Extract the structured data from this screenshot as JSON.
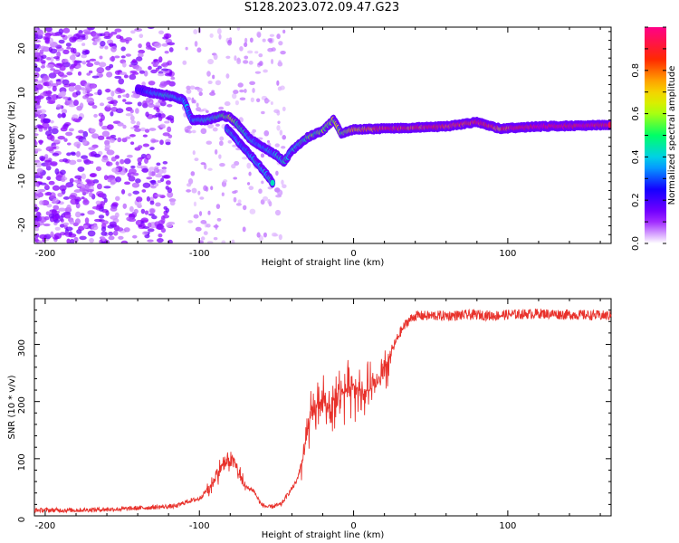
{
  "title": "S128.2023.072.09.47.G23",
  "chart_data": [
    {
      "type": "heatmap",
      "xlabel": "Height of straight line (km)",
      "ylabel": "Frequency (Hz)",
      "xlim": [
        -207,
        167
      ],
      "ylim": [
        -25,
        24
      ],
      "xticks": [
        -200,
        -100,
        0,
        100
      ],
      "yticks": [
        -20,
        -10,
        0,
        10,
        20
      ],
      "colorbar": {
        "label": "Normalized spectral amplitude",
        "range": [
          0,
          1
        ],
        "ticks": [
          "0.0",
          "0.2",
          "0.4",
          "0.6",
          "0.8"
        ],
        "colormap": [
          "#ffffff",
          "#8e00ff",
          "#1400ff",
          "#00c8ff",
          "#00ff66",
          "#c8ff00",
          "#ffc800",
          "#ff2a00",
          "#ff0088"
        ]
      },
      "ridge": [
        {
          "x": -140,
          "y": 10,
          "a": 0.2
        },
        {
          "x": -130,
          "y": 9,
          "a": 0.35
        },
        {
          "x": -120,
          "y": 8.5,
          "a": 0.45
        },
        {
          "x": -110,
          "y": 7.5,
          "a": 0.35
        },
        {
          "x": -105,
          "y": 3,
          "a": 0.35
        },
        {
          "x": -95,
          "y": 3,
          "a": 0.4
        },
        {
          "x": -85,
          "y": 4,
          "a": 0.5
        },
        {
          "x": -80,
          "y": 3.5,
          "a": 0.6
        },
        {
          "x": -75,
          "y": 2,
          "a": 0.5
        },
        {
          "x": -68,
          "y": -1,
          "a": 0.4
        },
        {
          "x": -60,
          "y": -3,
          "a": 0.35
        },
        {
          "x": -50,
          "y": -5,
          "a": 0.4
        },
        {
          "x": -45,
          "y": -6.5,
          "a": 0.45
        },
        {
          "x": -40,
          "y": -4,
          "a": 0.4
        },
        {
          "x": -30,
          "y": -1,
          "a": 0.5
        },
        {
          "x": -20,
          "y": 0.5,
          "a": 0.55
        },
        {
          "x": -13,
          "y": 3,
          "a": 0.6
        },
        {
          "x": -8,
          "y": 0,
          "a": 0.55
        },
        {
          "x": 0,
          "y": 0.8,
          "a": 0.7
        },
        {
          "x": 20,
          "y": 1,
          "a": 0.85
        },
        {
          "x": 60,
          "y": 1.5,
          "a": 0.85
        },
        {
          "x": 80,
          "y": 2.5,
          "a": 0.9
        },
        {
          "x": 95,
          "y": 1,
          "a": 0.8
        },
        {
          "x": 120,
          "y": 1.5,
          "a": 0.95
        },
        {
          "x": 167,
          "y": 1.8,
          "a": 0.95
        }
      ],
      "branch": [
        {
          "x": -82,
          "y": 1,
          "a": 0.4
        },
        {
          "x": -72,
          "y": -3,
          "a": 0.35
        },
        {
          "x": -62,
          "y": -7,
          "a": 0.4
        },
        {
          "x": -55,
          "y": -10,
          "a": 0.45
        },
        {
          "x": -52,
          "y": -11.5,
          "a": 0.4
        }
      ]
    },
    {
      "type": "line",
      "xlabel": "Height of straight line (km)",
      "ylabel": "SNR (10 * v/v)",
      "xlim": [
        -207,
        167
      ],
      "ylim": [
        0,
        380
      ],
      "xticks": [
        -200,
        -100,
        0,
        100
      ],
      "yticks": [
        0,
        100,
        200,
        300
      ],
      "series": [
        {
          "color": "#e8312b",
          "points": [
            [
              -207,
              10
            ],
            [
              -180,
              10
            ],
            [
              -150,
              12
            ],
            [
              -130,
              15
            ],
            [
              -115,
              17
            ],
            [
              -108,
              25
            ],
            [
              -100,
              30
            ],
            [
              -92,
              55
            ],
            [
              -85,
              90
            ],
            [
              -78,
              100
            ],
            [
              -74,
              70
            ],
            [
              -70,
              50
            ],
            [
              -65,
              45
            ],
            [
              -60,
              20
            ],
            [
              -55,
              15
            ],
            [
              -47,
              20
            ],
            [
              -42,
              40
            ],
            [
              -37,
              60
            ],
            [
              -33,
              100
            ],
            [
              -28,
              170
            ],
            [
              -22,
              200
            ],
            [
              -15,
              190
            ],
            [
              -10,
              210
            ],
            [
              -5,
              220
            ],
            [
              0,
              230
            ],
            [
              5,
              215
            ],
            [
              10,
              220
            ],
            [
              15,
              230
            ],
            [
              20,
              250
            ],
            [
              25,
              290
            ],
            [
              30,
              320
            ],
            [
              35,
              340
            ],
            [
              40,
              350
            ],
            [
              60,
              350
            ],
            [
              80,
              352
            ],
            [
              90,
              350
            ],
            [
              100,
              352
            ],
            [
              120,
              354
            ],
            [
              140,
              352
            ],
            [
              167,
              350
            ]
          ]
        }
      ]
    }
  ]
}
